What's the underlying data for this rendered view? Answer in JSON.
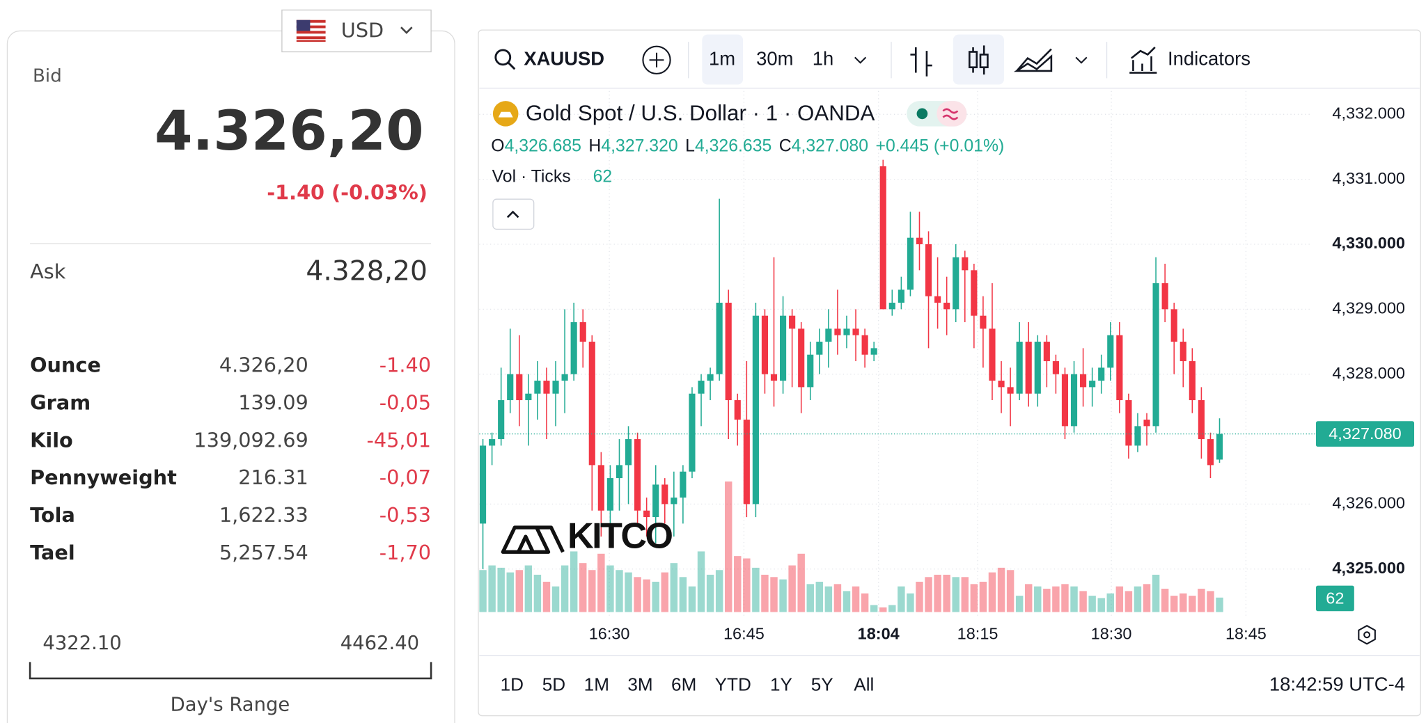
{
  "currency": {
    "code": "USD"
  },
  "quote": {
    "bid_label": "Bid",
    "bid": "4.326,20",
    "change": "-1.40 (-0.03%)",
    "ask_label": "Ask",
    "ask": "4.328,20"
  },
  "units": [
    [
      "Ounce",
      "4.326,20",
      "-1.40"
    ],
    [
      "Gram",
      "139.09",
      "-0,05"
    ],
    [
      "Kilo",
      "139,092.69",
      "-45,01"
    ],
    [
      "Pennyweight",
      "216.31",
      "-0,07"
    ],
    [
      "Tola",
      "1,622.33",
      "-0,53"
    ],
    [
      "Tael",
      "5,257.54",
      "-1,70"
    ]
  ],
  "day_range": {
    "low": "4322.10",
    "high": "4462.40",
    "label": "Day's Range"
  },
  "toolbar": {
    "symbol": "XAUUSD",
    "intervals": [
      "1m",
      "30m",
      "1h"
    ],
    "indicators": "Indicators"
  },
  "ranges": [
    "1D",
    "5D",
    "1M",
    "3M",
    "6M",
    "YTD",
    "1Y",
    "5Y",
    "All"
  ],
  "clock": "18:42:59 UTC-4",
  "chart_data": {
    "type": "candlestick",
    "title": "Gold Spot / U.S. Dollar · 1 · OANDA",
    "legend": {
      "ohlc": [
        {
          "key": "O",
          "label": "4,326.685"
        },
        {
          "key": "H",
          "label": "4,327.320"
        },
        {
          "key": "L",
          "label": "4,326.635"
        },
        {
          "key": "C",
          "label": "4,327.080"
        }
      ],
      "change": "+0.445 (+0.01%)",
      "volume_label": "Vol · Ticks"
    },
    "watermark": "KITCO",
    "x_labels": [
      "16:30",
      "16:45",
      "18:04",
      "18:15",
      "18:30",
      "18:45"
    ],
    "up_color": "#22ab94",
    "down_color": "#f23645",
    "grid": true,
    "ylim": [
      4324.24,
      4332.36
    ],
    "yticks": [
      {
        "value": 4332,
        "label": "4,332.000"
      },
      {
        "value": 4331,
        "label": "4,331.000"
      },
      {
        "value": 4330,
        "label": "4,330.000"
      },
      {
        "value": 4329,
        "label": "4,329.000"
      },
      {
        "value": 4328,
        "label": "4,328.000"
      },
      {
        "value": 4326,
        "label": "4,326.000"
      },
      {
        "value": 4325,
        "label": "4,325.000"
      }
    ],
    "last_price": {
      "value": 4327.08,
      "label": "4,327.080"
    },
    "open": [
      4325.7,
      4326.9,
      4327.0,
      4327.6,
      4328.0,
      4327.6,
      4327.7,
      4327.9,
      4327.7,
      4327.9,
      4328.0,
      4328.8,
      4328.5,
      4326.6,
      4325.9,
      4326.4,
      4326.6,
      4327.0,
      4325.9,
      4325.8,
      4326.3,
      4326.0,
      4326.1,
      4326.5,
      4327.7,
      4327.9,
      4328.0,
      4329.1,
      4327.6,
      4327.3,
      4326.0,
      4328.9,
      4328.0,
      4327.9,
      4328.9,
      4328.7,
      4327.8,
      4328.3,
      4328.5,
      4328.7,
      4328.6,
      4328.7,
      4328.6,
      4328.3,
      4331.2,
      4329.0,
      4329.1,
      4329.3,
      4330.1,
      4330.0,
      4329.2,
      4329.1,
      4329.0,
      4329.8,
      4329.6,
      4328.9,
      4328.7,
      4327.9,
      4327.8,
      4327.7,
      4328.5,
      4327.7,
      4328.5,
      4328.2,
      4328.0,
      4327.2,
      4328.0,
      4327.8,
      4327.9,
      4328.1,
      4328.6,
      4327.6,
      4326.9,
      4327.3,
      4327.2,
      4329.4,
      4329.0,
      4328.5,
      4328.2,
      4327.6,
      4327.0,
      4326.685
    ],
    "high": [
      4327.0,
      4327.1,
      4328.1,
      4328.7,
      4328.6,
      4328.0,
      4328.2,
      4328.1,
      4328.2,
      4329.0,
      4329.1,
      4329.0,
      4328.6,
      4326.8,
      4326.6,
      4327.0,
      4327.2,
      4327.1,
      4326.1,
      4326.6,
      4326.4,
      4326.5,
      4326.6,
      4327.8,
      4328.0,
      4328.1,
      4330.7,
      4329.3,
      4327.7,
      4328.2,
      4329.1,
      4329.0,
      4329.8,
      4329.2,
      4329.0,
      4328.8,
      4328.5,
      4328.7,
      4329.0,
      4329.3,
      4328.9,
      4329.0,
      4328.7,
      4328.5,
      4331.3,
      4329.3,
      4329.5,
      4330.5,
      4330.5,
      4330.2,
      4329.8,
      4329.5,
      4330.0,
      4329.9,
      4329.7,
      4329.2,
      4329.4,
      4328.2,
      4328.1,
      4328.8,
      4328.8,
      4328.6,
      4328.6,
      4328.3,
      4328.1,
      4328.2,
      4328.4,
      4328.1,
      4328.3,
      4328.8,
      4328.8,
      4327.7,
      4327.4,
      4327.4,
      4329.8,
      4329.7,
      4329.1,
      4328.7,
      4328.4,
      4327.8,
      4327.1,
      4327.32
    ],
    "low": [
      4325.0,
      4326.6,
      4326.9,
      4327.4,
      4327.2,
      4326.9,
      4327.3,
      4327.0,
      4327.2,
      4327.4,
      4327.9,
      4328.1,
      4325.9,
      4325.5,
      4325.7,
      4325.9,
      4326.0,
      4325.7,
      4325.5,
      4325.4,
      4325.7,
      4325.5,
      4325.7,
      4326.4,
      4327.2,
      4327.6,
      4327.9,
      4327.0,
      4326.9,
      4325.8,
      4325.8,
      4327.7,
      4327.5,
      4327.7,
      4327.8,
      4327.4,
      4327.6,
      4328.0,
      4328.1,
      4328.3,
      4328.4,
      4328.2,
      4328.1,
      4328.2,
      4329.0,
      4328.9,
      4329.0,
      4329.2,
      4329.6,
      4328.4,
      4328.7,
      4328.6,
      4328.8,
      4328.8,
      4328.4,
      4328.1,
      4327.6,
      4327.4,
      4327.2,
      4327.6,
      4327.5,
      4327.5,
      4327.8,
      4327.7,
      4327.0,
      4327.1,
      4327.5,
      4327.5,
      4327.7,
      4327.9,
      4327.4,
      4326.7,
      4326.8,
      4326.9,
      4327.1,
      4328.8,
      4328.0,
      4327.8,
      4327.4,
      4326.7,
      4326.4,
      4326.635
    ],
    "close": [
      4326.9,
      4327.0,
      4327.6,
      4328.0,
      4327.6,
      4327.7,
      4327.9,
      4327.7,
      4327.9,
      4328.0,
      4328.8,
      4328.5,
      4326.6,
      4325.9,
      4326.4,
      4326.6,
      4327.0,
      4325.9,
      4325.8,
      4326.3,
      4326.0,
      4326.1,
      4326.5,
      4327.7,
      4327.9,
      4328.0,
      4329.1,
      4327.6,
      4327.3,
      4326.0,
      4328.9,
      4328.0,
      4327.9,
      4328.9,
      4328.7,
      4327.8,
      4328.3,
      4328.5,
      4328.7,
      4328.6,
      4328.7,
      4328.6,
      4328.3,
      4328.4,
      4329.0,
      4329.1,
      4329.3,
      4330.1,
      4330.0,
      4329.2,
      4329.1,
      4329.0,
      4329.8,
      4329.6,
      4328.9,
      4328.7,
      4327.9,
      4327.8,
      4327.7,
      4328.5,
      4327.7,
      4328.5,
      4328.2,
      4328.0,
      4327.2,
      4328.0,
      4327.8,
      4327.9,
      4328.1,
      4328.6,
      4327.6,
      4326.9,
      4327.2,
      4327.2,
      4329.4,
      4329.0,
      4328.5,
      4328.2,
      4327.6,
      4327.0,
      4326.6,
      4327.08
    ],
    "volume": {
      "values": [
        180,
        200,
        190,
        170,
        180,
        200,
        160,
        130,
        110,
        200,
        260,
        210,
        180,
        250,
        200,
        180,
        170,
        150,
        140,
        130,
        170,
        210,
        150,
        110,
        260,
        160,
        180,
        560,
        240,
        230,
        190,
        160,
        150,
        140,
        200,
        250,
        120,
        130,
        110,
        120,
        90,
        110,
        80,
        30,
        20,
        30,
        110,
        80,
        130,
        150,
        160,
        160,
        150,
        150,
        120,
        130,
        170,
        190,
        180,
        70,
        120,
        110,
        100,
        110,
        120,
        110,
        90,
        70,
        60,
        80,
        110,
        90,
        110,
        120,
        160,
        100,
        70,
        80,
        70,
        100,
        90,
        62
      ]
    }
  }
}
